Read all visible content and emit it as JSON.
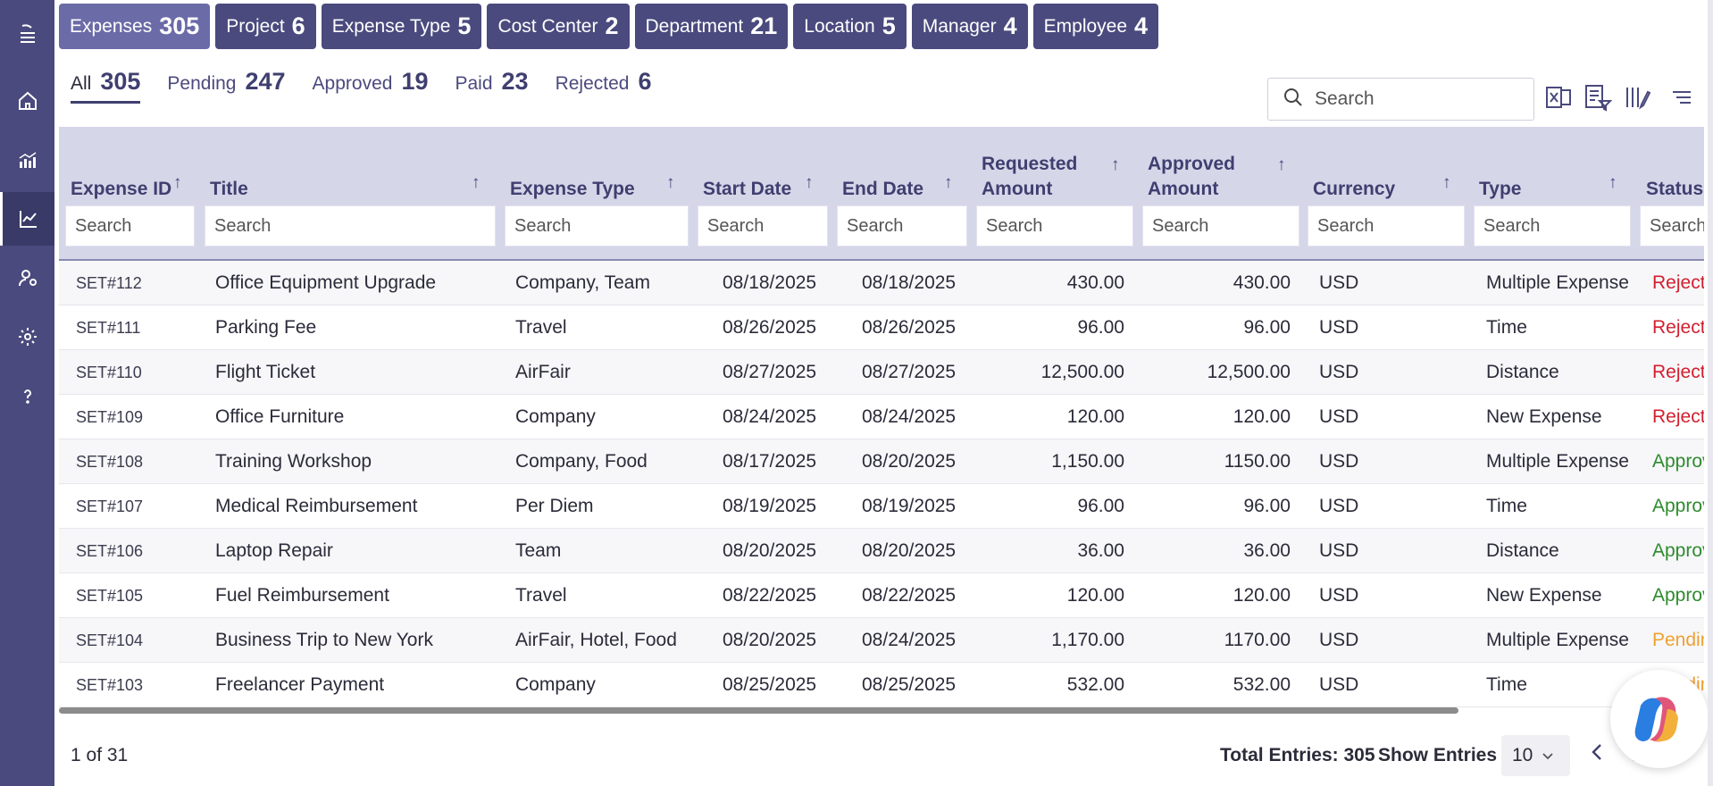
{
  "category_tabs": [
    {
      "label": "Expenses",
      "count": "305"
    },
    {
      "label": "Project",
      "count": "6"
    },
    {
      "label": "Expense Type",
      "count": "5"
    },
    {
      "label": "Cost Center",
      "count": "2"
    },
    {
      "label": "Department",
      "count": "21"
    },
    {
      "label": "Location",
      "count": "5"
    },
    {
      "label": "Manager",
      "count": "4"
    },
    {
      "label": "Employee",
      "count": "4"
    }
  ],
  "status_tabs": [
    {
      "label": "All",
      "count": "305"
    },
    {
      "label": "Pending",
      "count": "247"
    },
    {
      "label": "Approved",
      "count": "19"
    },
    {
      "label": "Paid",
      "count": "23"
    },
    {
      "label": "Rejected",
      "count": "6"
    }
  ],
  "search": {
    "placeholder": "Search"
  },
  "table": {
    "headers": {
      "expense_id": "Expense ID",
      "title": "Title",
      "expense_type": "Expense Type",
      "start_date": "Start Date",
      "end_date": "End Date",
      "requested_1": "Requested",
      "requested_2": "Amount",
      "approved_1": "Approved",
      "approved_2": "Amount",
      "currency": "Currency",
      "type": "Type",
      "status": "Status"
    },
    "filter_placeholder": "Search",
    "rows": [
      {
        "id": "SET#112",
        "title": "Office Equipment Upgrade",
        "expense_type": "Company, Team",
        "start": "08/18/2025",
        "end": "08/18/2025",
        "requested": "430.00",
        "approved": "430.00",
        "currency": "USD",
        "type": "Multiple Expense",
        "status": "Rejected"
      },
      {
        "id": "SET#111",
        "title": "Parking Fee",
        "expense_type": "Travel",
        "start": "08/26/2025",
        "end": "08/26/2025",
        "requested": "96.00",
        "approved": "96.00",
        "currency": "USD",
        "type": "Time",
        "status": "Rejected"
      },
      {
        "id": "SET#110",
        "title": "Flight Ticket",
        "expense_type": "AirFair",
        "start": "08/27/2025",
        "end": "08/27/2025",
        "requested": "12,500.00",
        "approved": "12,500.00",
        "currency": "USD",
        "type": "Distance",
        "status": "Rejected"
      },
      {
        "id": "SET#109",
        "title": "Office Furniture",
        "expense_type": "Company",
        "start": "08/24/2025",
        "end": "08/24/2025",
        "requested": "120.00",
        "approved": "120.00",
        "currency": "USD",
        "type": "New Expense",
        "status": "Rejected"
      },
      {
        "id": "SET#108",
        "title": "Training Workshop",
        "expense_type": "Company, Food",
        "start": "08/17/2025",
        "end": "08/20/2025",
        "requested": "1,150.00",
        "approved": "1150.00",
        "currency": "USD",
        "type": "Multiple Expense",
        "status": "Approved"
      },
      {
        "id": "SET#107",
        "title": "Medical Reimbursement",
        "expense_type": "Per Diem",
        "start": "08/19/2025",
        "end": "08/19/2025",
        "requested": "96.00",
        "approved": "96.00",
        "currency": "USD",
        "type": "Time",
        "status": "Approved"
      },
      {
        "id": "SET#106",
        "title": "Laptop Repair",
        "expense_type": "Team",
        "start": "08/20/2025",
        "end": "08/20/2025",
        "requested": "36.00",
        "approved": "36.00",
        "currency": "USD",
        "type": "Distance",
        "status": "Approved"
      },
      {
        "id": "SET#105",
        "title": "Fuel Reimbursement",
        "expense_type": "Travel",
        "start": "08/22/2025",
        "end": "08/22/2025",
        "requested": "120.00",
        "approved": "120.00",
        "currency": "USD",
        "type": "New Expense",
        "status": "Approved"
      },
      {
        "id": "SET#104",
        "title": "Business Trip to New York",
        "expense_type": "AirFair, Hotel, Food",
        "start": "08/20/2025",
        "end": "08/24/2025",
        "requested": "1,170.00",
        "approved": "1170.00",
        "currency": "USD",
        "type": "Multiple Expense",
        "status": "Pending"
      },
      {
        "id": "SET#103",
        "title": "Freelancer Payment",
        "expense_type": "Company",
        "start": "08/25/2025",
        "end": "08/25/2025",
        "requested": "532.00",
        "approved": "532.00",
        "currency": "USD",
        "type": "Time",
        "status": "Pending"
      }
    ]
  },
  "footer": {
    "page_info": "1 of 31",
    "total_entries": "Total Entries: 305",
    "show_entries": "Show Entries",
    "entries_value": "10",
    "current_page": "1"
  },
  "colors": {
    "sidebar": "#4a4a7e",
    "tab_active": "#6b6ba8",
    "header_bg": "#d6d6e9",
    "status_rejected": "#d21f2f",
    "status_approved": "#2e8b2e",
    "status_pending": "#f0a030"
  },
  "icons": [
    "menu-icon",
    "home-icon",
    "analytics-icon",
    "chart-icon",
    "user-settings-icon",
    "gear-icon",
    "help-icon",
    "search-icon",
    "excel-icon",
    "filter-list-icon",
    "columns-icon",
    "sort-lines-icon",
    "copilot-icon"
  ]
}
